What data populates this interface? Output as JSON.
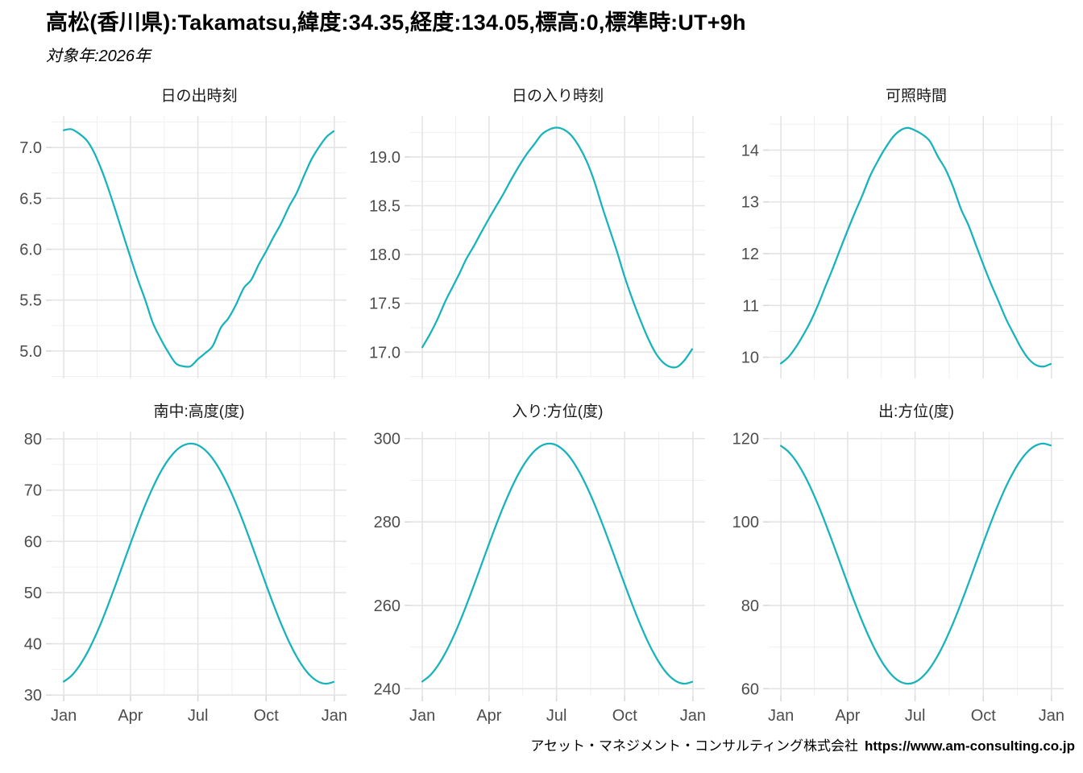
{
  "header": {
    "title": "高松(香川県):Takamatsu,緯度:34.35,経度:134.05,標高:0,標準時:UT+9h",
    "subtitle": "対象年:2026年"
  },
  "footer": {
    "company": "アセット・マネジメント・コンサルティング株式会社",
    "url": "https://www.am-consulting.co.jp"
  },
  "style": {
    "line_color": "#17b3ba",
    "grid_major_color": "#e4e4e4",
    "grid_minor_color": "#f0f0f0",
    "tick_color": "#d9d9d9",
    "axis_label_color": "#4d4d4d",
    "panel_title_color": "#1a1a1a"
  },
  "axis": {
    "x_tick_labels": [
      "Jan",
      "Apr",
      "Jul",
      "Oct",
      "Jan"
    ],
    "x_tick_days": [
      1,
      91,
      182,
      274,
      366
    ],
    "x_minor_days": [
      46,
      136.5,
      228,
      320
    ],
    "x_domain": [
      1,
      366
    ]
  },
  "chart_data": [
    {
      "id": "sunrise-time",
      "type": "line",
      "title": "日の出時刻",
      "grid": true,
      "legend": "none",
      "y_domain": [
        4.73,
        7.31
      ],
      "y_tick_values": [
        5.0,
        5.5,
        6.0,
        6.5,
        7.0
      ],
      "y_tick_labels": [
        "5.0",
        "5.5",
        "6.0",
        "6.5",
        "7.0"
      ],
      "y_minor": [
        4.75,
        5.25,
        5.75,
        6.25,
        6.75,
        7.25
      ],
      "x": [
        1,
        11,
        21,
        32,
        42,
        52,
        60,
        70,
        80,
        91,
        101,
        111,
        121,
        131,
        141,
        152,
        162,
        172,
        182,
        192,
        202,
        213,
        223,
        233,
        244,
        254,
        264,
        274,
        284,
        294,
        305,
        315,
        325,
        335,
        345,
        355,
        365
      ],
      "y": [
        7.17,
        7.18,
        7.14,
        7.07,
        6.95,
        6.78,
        6.62,
        6.4,
        6.17,
        5.92,
        5.7,
        5.5,
        5.28,
        5.13,
        5.0,
        4.88,
        4.85,
        4.85,
        4.92,
        4.98,
        5.05,
        5.23,
        5.32,
        5.45,
        5.62,
        5.7,
        5.85,
        5.98,
        6.12,
        6.25,
        6.42,
        6.55,
        6.72,
        6.88,
        7.0,
        7.1,
        7.16
      ]
    },
    {
      "id": "sunset-time",
      "type": "line",
      "title": "日の入り時刻",
      "grid": true,
      "legend": "none",
      "y_domain": [
        16.73,
        19.42
      ],
      "y_tick_values": [
        17.0,
        17.5,
        18.0,
        18.5,
        19.0
      ],
      "y_tick_labels": [
        "17.0",
        "17.5",
        "18.0",
        "18.5",
        "19.0"
      ],
      "y_minor": [
        16.75,
        17.25,
        17.75,
        18.25,
        18.75,
        19.25
      ],
      "x": [
        1,
        11,
        21,
        32,
        42,
        52,
        60,
        70,
        80,
        91,
        101,
        111,
        121,
        131,
        141,
        152,
        162,
        172,
        182,
        192,
        202,
        213,
        223,
        233,
        244,
        254,
        264,
        274,
        284,
        294,
        305,
        315,
        325,
        335,
        345,
        355,
        365
      ],
      "y": [
        17.05,
        17.18,
        17.33,
        17.52,
        17.67,
        17.82,
        17.95,
        18.08,
        18.22,
        18.37,
        18.5,
        18.63,
        18.77,
        18.9,
        19.02,
        19.13,
        19.23,
        19.28,
        19.3,
        19.28,
        19.22,
        19.1,
        18.95,
        18.75,
        18.48,
        18.25,
        18.02,
        17.77,
        17.55,
        17.35,
        17.15,
        17.0,
        16.9,
        16.85,
        16.85,
        16.92,
        17.03
      ]
    },
    {
      "id": "daylight-hours",
      "type": "line",
      "title": "可照時間",
      "grid": true,
      "legend": "none",
      "y_domain": [
        9.59,
        14.66
      ],
      "y_tick_values": [
        10,
        11,
        12,
        13,
        14
      ],
      "y_tick_labels": [
        "10",
        "11",
        "12",
        "13",
        "14"
      ],
      "y_minor": [
        10.5,
        11.5,
        12.5,
        13.5,
        14.5
      ],
      "x": [
        1,
        11,
        21,
        32,
        42,
        52,
        60,
        70,
        80,
        91,
        101,
        111,
        121,
        131,
        141,
        152,
        162,
        172,
        182,
        192,
        202,
        213,
        223,
        233,
        244,
        254,
        264,
        274,
        284,
        294,
        305,
        315,
        325,
        335,
        345,
        355,
        365
      ],
      "y": [
        9.88,
        10.0,
        10.19,
        10.45,
        10.72,
        11.04,
        11.33,
        11.68,
        12.05,
        12.45,
        12.8,
        13.13,
        13.49,
        13.77,
        14.02,
        14.25,
        14.38,
        14.43,
        14.38,
        14.3,
        14.17,
        13.87,
        13.63,
        13.3,
        12.86,
        12.55,
        12.17,
        11.79,
        11.43,
        11.1,
        10.73,
        10.45,
        10.18,
        9.97,
        9.85,
        9.82,
        9.87
      ]
    },
    {
      "id": "culmination-altitude",
      "type": "line",
      "title": "南中:高度(度)",
      "grid": true,
      "legend": "none",
      "y_domain": [
        29.87,
        81.43
      ],
      "y_tick_values": [
        30,
        40,
        50,
        60,
        70,
        80
      ],
      "y_tick_labels": [
        "30",
        "40",
        "50",
        "60",
        "70",
        "80"
      ],
      "y_minor": [
        35,
        45,
        55,
        65,
        75
      ],
      "x": [
        1,
        11,
        21,
        32,
        42,
        52,
        60,
        70,
        80,
        91,
        101,
        111,
        121,
        131,
        141,
        152,
        162,
        172,
        182,
        192,
        202,
        213,
        223,
        233,
        244,
        254,
        264,
        274,
        284,
        294,
        305,
        315,
        325,
        335,
        345,
        355,
        365
      ],
      "y": [
        32.63,
        33.72,
        35.47,
        38.07,
        40.99,
        44.33,
        47.27,
        51.14,
        55.15,
        59.57,
        63.47,
        67.14,
        70.46,
        73.36,
        75.72,
        77.65,
        78.71,
        79.09,
        78.78,
        77.78,
        76.13,
        73.62,
        70.77,
        67.49,
        63.47,
        59.57,
        55.55,
        51.54,
        47.64,
        43.99,
        40.36,
        37.56,
        35.27,
        33.59,
        32.56,
        32.21,
        32.56
      ]
    },
    {
      "id": "sunset-azimuth",
      "type": "line",
      "title": "入り:方位(度)",
      "grid": true,
      "legend": "none",
      "y_domain": [
        238.32,
        301.68
      ],
      "y_tick_values": [
        240,
        260,
        280,
        300
      ],
      "y_tick_labels": [
        "240",
        "260",
        "280",
        "300"
      ],
      "y_minor": [
        250,
        270,
        290
      ],
      "x": [
        1,
        11,
        21,
        32,
        42,
        52,
        60,
        70,
        80,
        91,
        101,
        111,
        121,
        131,
        141,
        152,
        162,
        172,
        182,
        192,
        202,
        213,
        223,
        233,
        244,
        254,
        264,
        274,
        284,
        294,
        305,
        315,
        325,
        335,
        345,
        355,
        365
      ],
      "y": [
        241.73,
        243.11,
        245.3,
        248.54,
        252.14,
        256.25,
        259.83,
        264.54,
        269.39,
        274.75,
        279.49,
        283.96,
        288.04,
        291.62,
        294.57,
        296.98,
        298.32,
        298.8,
        298.41,
        297.14,
        295.08,
        291.94,
        288.42,
        284.39,
        279.49,
        274.75,
        269.88,
        265.02,
        260.29,
        255.83,
        251.37,
        247.91,
        245.05,
        242.94,
        241.64,
        241.2,
        241.64
      ]
    },
    {
      "id": "sunrise-azimuth",
      "type": "line",
      "title": "出:方位(度)",
      "grid": true,
      "legend": "none",
      "y_domain": [
        58.32,
        121.68
      ],
      "y_tick_values": [
        60,
        80,
        100,
        120
      ],
      "y_tick_labels": [
        "60",
        "80",
        "100",
        "120"
      ],
      "y_minor": [
        70,
        90,
        110
      ],
      "x": [
        1,
        11,
        21,
        32,
        42,
        52,
        60,
        70,
        80,
        91,
        101,
        111,
        121,
        131,
        141,
        152,
        162,
        172,
        182,
        192,
        202,
        213,
        223,
        233,
        244,
        254,
        264,
        274,
        284,
        294,
        305,
        315,
        325,
        335,
        345,
        355,
        365
      ],
      "y": [
        118.27,
        116.89,
        114.7,
        111.46,
        107.86,
        103.75,
        100.17,
        95.46,
        90.61,
        85.25,
        80.51,
        76.04,
        71.96,
        68.38,
        65.43,
        63.02,
        61.68,
        61.2,
        61.59,
        62.86,
        64.92,
        68.06,
        71.58,
        75.61,
        80.51,
        85.25,
        90.12,
        94.98,
        99.71,
        104.17,
        108.63,
        112.09,
        114.95,
        117.06,
        118.36,
        118.8,
        118.36
      ]
    }
  ]
}
